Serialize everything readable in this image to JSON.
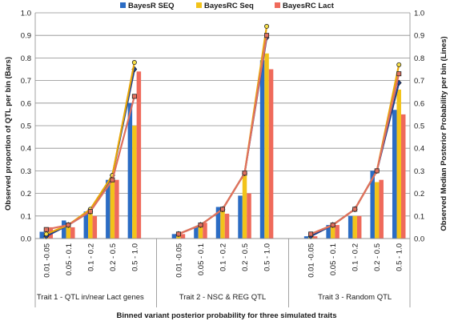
{
  "chart_data": {
    "type": "bar",
    "xlabel": "Binned variant posterior probability  for three simulated traits",
    "ylabel_left": "Observed proportion of QTL per bin (Bars)",
    "ylabel_right": "Observed Median Posterior Probability per bin (Lines)",
    "ylim": [
      0,
      1
    ],
    "yticks": [
      "0.0",
      "0.1",
      "0.2",
      "0.3",
      "0.4",
      "0.5",
      "0.6",
      "0.7",
      "0.8",
      "0.9",
      "1.0"
    ],
    "grid": true,
    "legend_position": "top",
    "series": [
      {
        "name": "BayesR SEQ",
        "color": "#2b6cc4",
        "line_color": "#1f3f8c",
        "marker": "diamond"
      },
      {
        "name": "BayesRC Seq",
        "color": "#f2c31a",
        "line_color": "#e8a70a",
        "marker": "circle"
      },
      {
        "name": "BayesRC Lact",
        "color": "#ef6a5b",
        "line_color": "#e0705f",
        "marker": "square"
      }
    ],
    "groups": [
      {
        "label": "Trait 1 -  QTL in/near Lact genes",
        "categories": [
          "0.01 -0.05",
          "0.05 - 0.1",
          "0.1 - 0.2",
          "0.2 - 0.5",
          "0.5 - 1.0"
        ],
        "bars": [
          [
            0.03,
            0.08,
            0.12,
            0.26,
            0.6
          ],
          [
            0.02,
            0.07,
            0.12,
            0.27,
            0.5
          ],
          [
            0.05,
            0.05,
            0.1,
            0.26,
            0.74
          ]
        ],
        "lines": [
          [
            0.01,
            0.06,
            0.12,
            0.28,
            0.75
          ],
          [
            0.02,
            0.06,
            0.13,
            0.28,
            0.78
          ],
          [
            0.04,
            0.06,
            0.12,
            0.26,
            0.63
          ]
        ]
      },
      {
        "label": "Trait 2 - NSC & REG QTL",
        "categories": [
          "0.01 -0.05",
          "0.05 - 0.1",
          "0.1 - 0.2",
          "0.2 - 0.5",
          "0.5 - 1.0"
        ],
        "bars": [
          [
            0.02,
            0.05,
            0.14,
            0.19,
            0.79
          ],
          [
            0.02,
            0.06,
            0.14,
            0.28,
            0.82
          ],
          [
            0.02,
            0.07,
            0.11,
            0.2,
            0.75
          ]
        ],
        "lines": [
          [
            0.02,
            0.06,
            0.13,
            0.29,
            0.89
          ],
          [
            0.02,
            0.06,
            0.13,
            0.29,
            0.94
          ],
          [
            0.02,
            0.06,
            0.13,
            0.29,
            0.9
          ]
        ]
      },
      {
        "label": "Trait 3 - Random QTL",
        "categories": [
          "0.01 -0.05",
          "0.05 - 0.1",
          "0.1 - 0.2",
          "0.2 - 0.5",
          "0.5 - 1.0"
        ],
        "bars": [
          [
            0.01,
            0.06,
            0.1,
            0.3,
            0.57
          ],
          [
            0.01,
            0.05,
            0.1,
            0.25,
            0.66
          ],
          [
            0.01,
            0.06,
            0.1,
            0.26,
            0.55
          ]
        ],
        "lines": [
          [
            0.01,
            0.06,
            0.13,
            0.3,
            0.69
          ],
          [
            0.02,
            0.06,
            0.13,
            0.3,
            0.77
          ],
          [
            0.02,
            0.06,
            0.13,
            0.3,
            0.73
          ]
        ]
      }
    ]
  }
}
